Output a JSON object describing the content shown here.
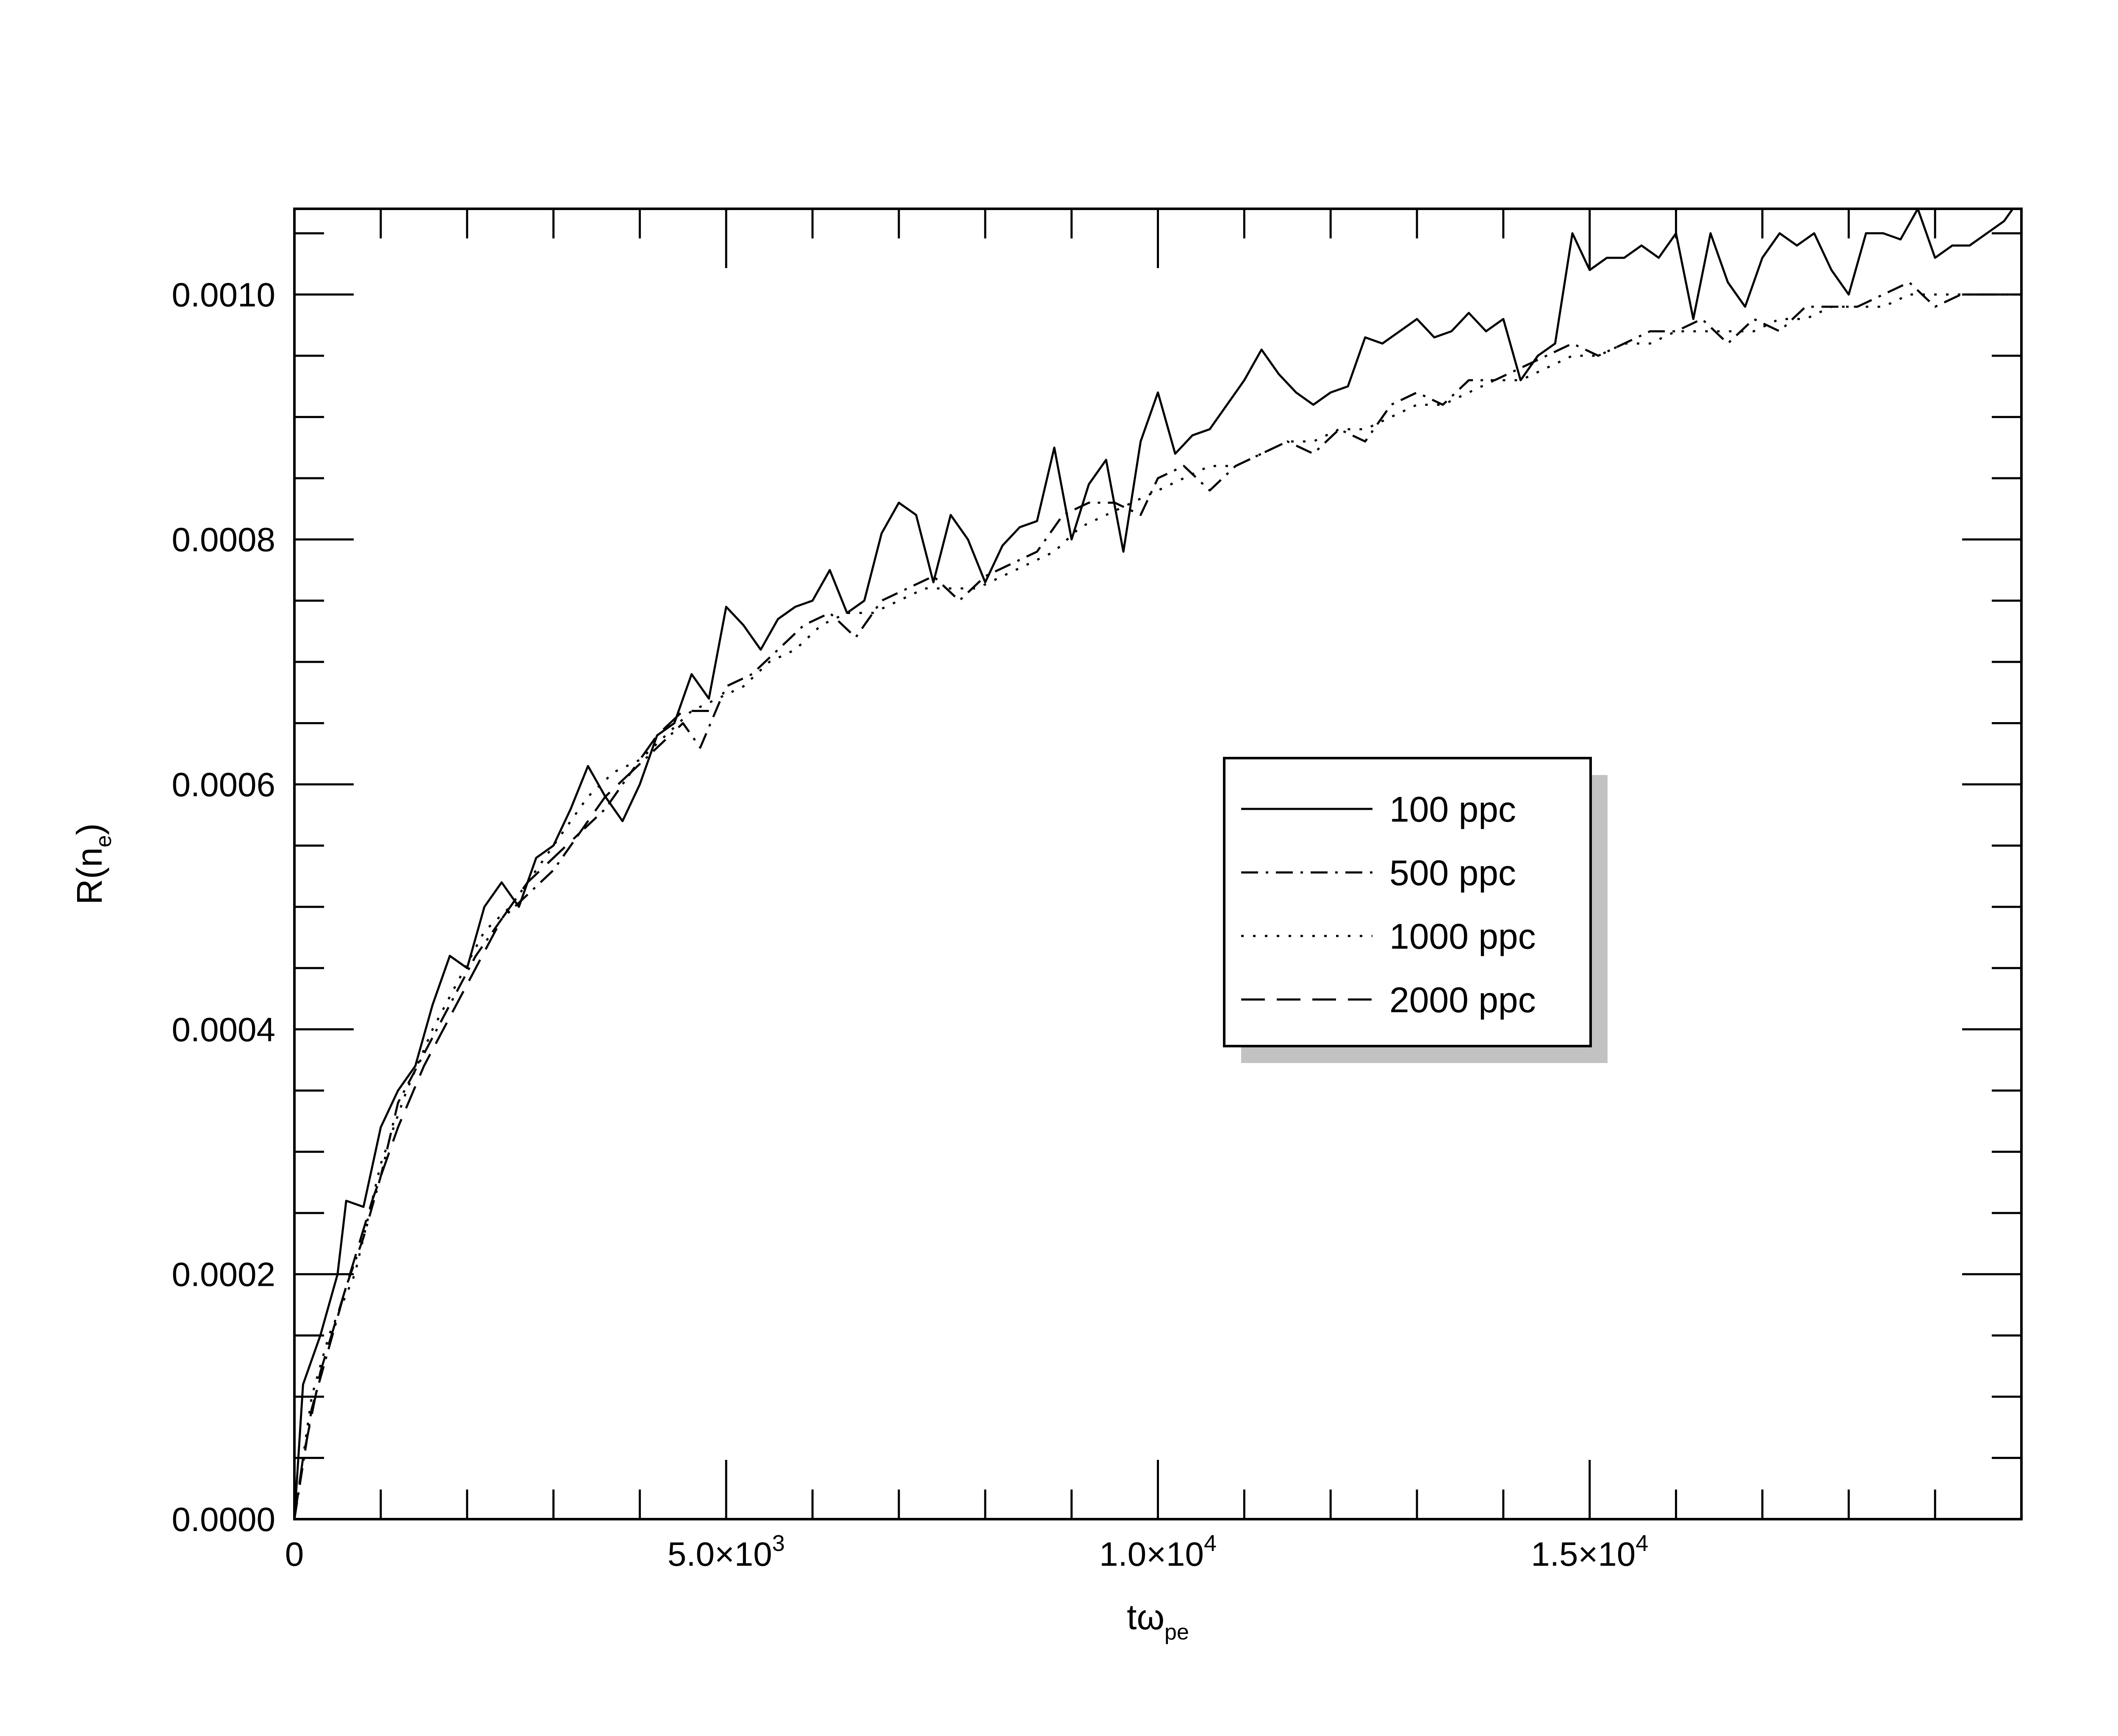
{
  "chart_data": {
    "type": "line",
    "title": "",
    "xlabel": {
      "main": "tω",
      "sub": "pe"
    },
    "ylabel": {
      "main": "R(n",
      "sub": "e",
      "close": ")"
    },
    "xlim": [
      0,
      20000
    ],
    "ylim": [
      0,
      0.00107
    ],
    "y_ticks": [
      {
        "value": 0,
        "label": "0.0000"
      },
      {
        "value": 0.0002,
        "label": "0.0002"
      },
      {
        "value": 0.0004,
        "label": "0.0004"
      },
      {
        "value": 0.0006,
        "label": "0.0006"
      },
      {
        "value": 0.0008,
        "label": "0.0008"
      },
      {
        "value": 0.001,
        "label": "0.0010"
      }
    ],
    "x_ticks": [
      {
        "value": 0,
        "label": "0"
      },
      {
        "value": 5000,
        "label": "5.0×10",
        "exp": "3"
      },
      {
        "value": 10000,
        "label": "1.0×10",
        "exp": "4"
      },
      {
        "value": 15000,
        "label": "1.5×10",
        "exp": "4"
      }
    ],
    "x_minor_step": 1000,
    "y_minor_step": 5e-05,
    "grid": false,
    "legend_position": "center-right",
    "series": [
      {
        "name": "100 ppc",
        "dash": "solid",
        "points": [
          [
            0,
            0
          ],
          [
            100,
            0.00011
          ],
          [
            300,
            0.00015
          ],
          [
            500,
            0.0002
          ],
          [
            600,
            0.00026
          ],
          [
            800,
            0.000255
          ],
          [
            1000,
            0.00032
          ],
          [
            1200,
            0.00035
          ],
          [
            1400,
            0.00037
          ],
          [
            1600,
            0.00042
          ],
          [
            1800,
            0.00046
          ],
          [
            2000,
            0.00045
          ],
          [
            2200,
            0.0005
          ],
          [
            2400,
            0.00052
          ],
          [
            2600,
            0.0005
          ],
          [
            2800,
            0.00054
          ],
          [
            3000,
            0.00055
          ],
          [
            3200,
            0.00058
          ],
          [
            3400,
            0.000615
          ],
          [
            3600,
            0.00059
          ],
          [
            3800,
            0.00057
          ],
          [
            4000,
            0.0006
          ],
          [
            4200,
            0.00064
          ],
          [
            4400,
            0.00065
          ],
          [
            4600,
            0.00069
          ],
          [
            4800,
            0.00067
          ],
          [
            5000,
            0.000745
          ],
          [
            5200,
            0.00073
          ],
          [
            5400,
            0.00071
          ],
          [
            5600,
            0.000735
          ],
          [
            5800,
            0.000745
          ],
          [
            6000,
            0.00075
          ],
          [
            6200,
            0.000775
          ],
          [
            6400,
            0.00074
          ],
          [
            6600,
            0.00075
          ],
          [
            6800,
            0.000805
          ],
          [
            7000,
            0.00083
          ],
          [
            7200,
            0.00082
          ],
          [
            7400,
            0.000765
          ],
          [
            7600,
            0.00082
          ],
          [
            7800,
            0.0008
          ],
          [
            8000,
            0.000765
          ],
          [
            8200,
            0.000795
          ],
          [
            8400,
            0.00081
          ],
          [
            8600,
            0.000815
          ],
          [
            8800,
            0.000875
          ],
          [
            9000,
            0.0008
          ],
          [
            9200,
            0.000845
          ],
          [
            9400,
            0.000865
          ],
          [
            9600,
            0.00079
          ],
          [
            9800,
            0.00088
          ],
          [
            10000,
            0.00092
          ],
          [
            10200,
            0.00087
          ],
          [
            10400,
            0.000885
          ],
          [
            10600,
            0.00089
          ],
          [
            10800,
            0.00091
          ],
          [
            11000,
            0.00093
          ],
          [
            11200,
            0.000955
          ],
          [
            11400,
            0.000935
          ],
          [
            11600,
            0.00092
          ],
          [
            11800,
            0.00091
          ],
          [
            12000,
            0.00092
          ],
          [
            12200,
            0.000925
          ],
          [
            12400,
            0.000965
          ],
          [
            12600,
            0.00096
          ],
          [
            12800,
            0.00097
          ],
          [
            13000,
            0.00098
          ],
          [
            13200,
            0.000965
          ],
          [
            13400,
            0.00097
          ],
          [
            13600,
            0.000985
          ],
          [
            13800,
            0.00097
          ],
          [
            14000,
            0.00098
          ],
          [
            14200,
            0.00093
          ],
          [
            14400,
            0.00095
          ],
          [
            14600,
            0.00096
          ],
          [
            14800,
            0.00105
          ],
          [
            15000,
            0.00102
          ],
          [
            15200,
            0.00103
          ],
          [
            15400,
            0.00103
          ],
          [
            15600,
            0.00104
          ],
          [
            15800,
            0.00103
          ],
          [
            16000,
            0.00105
          ],
          [
            16200,
            0.00098
          ],
          [
            16400,
            0.00105
          ],
          [
            16600,
            0.00101
          ],
          [
            16800,
            0.00099
          ],
          [
            17000,
            0.00103
          ],
          [
            17200,
            0.00105
          ],
          [
            17400,
            0.00104
          ],
          [
            17600,
            0.00105
          ],
          [
            17800,
            0.00102
          ],
          [
            18000,
            0.001
          ],
          [
            18200,
            0.00105
          ],
          [
            18400,
            0.00105
          ],
          [
            18600,
            0.001045
          ],
          [
            18800,
            0.00107
          ],
          [
            19000,
            0.00103
          ],
          [
            19200,
            0.00104
          ],
          [
            19400,
            0.00104
          ],
          [
            19600,
            0.00105
          ],
          [
            19800,
            0.00106
          ],
          [
            20000,
            0.00108
          ]
        ]
      },
      {
        "name": "500 ppc",
        "dash": "dashdot",
        "points": [
          [
            0,
            0
          ],
          [
            200,
            9e-05
          ],
          [
            400,
            0.00014
          ],
          [
            600,
            0.00019
          ],
          [
            800,
            0.00023
          ],
          [
            1000,
            0.00028
          ],
          [
            1200,
            0.00034
          ],
          [
            1500,
            0.00038
          ],
          [
            1800,
            0.00042
          ],
          [
            2100,
            0.00046
          ],
          [
            2400,
            0.00049
          ],
          [
            2700,
            0.00051
          ],
          [
            3000,
            0.00053
          ],
          [
            3300,
            0.00056
          ],
          [
            3600,
            0.00058
          ],
          [
            3900,
            0.00061
          ],
          [
            4200,
            0.00063
          ],
          [
            4500,
            0.00065
          ],
          [
            4700,
            0.00063
          ],
          [
            5000,
            0.00068
          ],
          [
            5300,
            0.00069
          ],
          [
            5600,
            0.00071
          ],
          [
            5900,
            0.00073
          ],
          [
            6200,
            0.00074
          ],
          [
            6500,
            0.00072
          ],
          [
            6800,
            0.00075
          ],
          [
            7100,
            0.00076
          ],
          [
            7400,
            0.00077
          ],
          [
            7700,
            0.00075
          ],
          [
            8000,
            0.00077
          ],
          [
            8300,
            0.00078
          ],
          [
            8600,
            0.00079
          ],
          [
            8900,
            0.00082
          ],
          [
            9200,
            0.00083
          ],
          [
            9500,
            0.00083
          ],
          [
            9800,
            0.00082
          ],
          [
            10000,
            0.00085
          ],
          [
            10300,
            0.00086
          ],
          [
            10600,
            0.00084
          ],
          [
            10900,
            0.00086
          ],
          [
            11200,
            0.00087
          ],
          [
            11500,
            0.00088
          ],
          [
            11800,
            0.00087
          ],
          [
            12100,
            0.00089
          ],
          [
            12400,
            0.00088
          ],
          [
            12700,
            0.00091
          ],
          [
            13000,
            0.00092
          ],
          [
            13300,
            0.00091
          ],
          [
            13600,
            0.00093
          ],
          [
            13900,
            0.00093
          ],
          [
            14200,
            0.00094
          ],
          [
            14500,
            0.00095
          ],
          [
            14800,
            0.00096
          ],
          [
            15100,
            0.00095
          ],
          [
            15400,
            0.00096
          ],
          [
            15700,
            0.00097
          ],
          [
            16000,
            0.00097
          ],
          [
            16300,
            0.00098
          ],
          [
            16600,
            0.00096
          ],
          [
            16900,
            0.00098
          ],
          [
            17200,
            0.00097
          ],
          [
            17500,
            0.00099
          ],
          [
            17800,
            0.00099
          ],
          [
            18100,
            0.00099
          ],
          [
            18400,
            0.001
          ],
          [
            18700,
            0.00101
          ],
          [
            19000,
            0.00099
          ],
          [
            19300,
            0.001
          ],
          [
            19600,
            0.001
          ],
          [
            20000,
            0.001
          ]
        ]
      },
      {
        "name": "1000 ppc",
        "dash": "dotted",
        "points": [
          [
            0,
            0
          ],
          [
            200,
            0.0001
          ],
          [
            400,
            0.00015
          ],
          [
            700,
            0.0002
          ],
          [
            1000,
            0.00029
          ],
          [
            1300,
            0.00035
          ],
          [
            1600,
            0.0004
          ],
          [
            1900,
            0.00044
          ],
          [
            2200,
            0.00048
          ],
          [
            2500,
            0.0005
          ],
          [
            2800,
            0.00053
          ],
          [
            3100,
            0.00056
          ],
          [
            3400,
            0.00059
          ],
          [
            3700,
            0.00061
          ],
          [
            4000,
            0.00062
          ],
          [
            4300,
            0.00064
          ],
          [
            4600,
            0.00066
          ],
          [
            4900,
            0.00067
          ],
          [
            5200,
            0.00068
          ],
          [
            5500,
            0.0007
          ],
          [
            5800,
            0.00071
          ],
          [
            6100,
            0.00073
          ],
          [
            6400,
            0.00074
          ],
          [
            6700,
            0.00074
          ],
          [
            7000,
            0.00075
          ],
          [
            7300,
            0.00076
          ],
          [
            7600,
            0.00076
          ],
          [
            7900,
            0.00076
          ],
          [
            8200,
            0.00077
          ],
          [
            8500,
            0.00078
          ],
          [
            8800,
            0.00079
          ],
          [
            9100,
            0.00081
          ],
          [
            9400,
            0.00082
          ],
          [
            9700,
            0.00083
          ],
          [
            10000,
            0.00084
          ],
          [
            10300,
            0.00085
          ],
          [
            10600,
            0.00086
          ],
          [
            10900,
            0.00086
          ],
          [
            11200,
            0.00087
          ],
          [
            11500,
            0.00088
          ],
          [
            11800,
            0.00088
          ],
          [
            12100,
            0.00089
          ],
          [
            12400,
            0.00089
          ],
          [
            12700,
            0.0009
          ],
          [
            13000,
            0.00091
          ],
          [
            13300,
            0.00091
          ],
          [
            13600,
            0.00092
          ],
          [
            13900,
            0.00093
          ],
          [
            14200,
            0.00093
          ],
          [
            14500,
            0.00094
          ],
          [
            14800,
            0.00095
          ],
          [
            15100,
            0.00095
          ],
          [
            15400,
            0.00096
          ],
          [
            15700,
            0.00096
          ],
          [
            16000,
            0.00097
          ],
          [
            16300,
            0.00097
          ],
          [
            16600,
            0.00097
          ],
          [
            16900,
            0.00097
          ],
          [
            17200,
            0.00098
          ],
          [
            17500,
            0.00098
          ],
          [
            17800,
            0.00099
          ],
          [
            18100,
            0.00099
          ],
          [
            18400,
            0.00099
          ],
          [
            18700,
            0.001
          ],
          [
            19000,
            0.001
          ],
          [
            19300,
            0.001
          ],
          [
            19600,
            0.001
          ],
          [
            20000,
            0.001
          ]
        ]
      },
      {
        "name": "2000 ppc",
        "dash": "dashed",
        "points": [
          [
            0,
            0
          ],
          [
            100,
            5e-05
          ],
          [
            300,
            0.00012
          ],
          [
            600,
            0.00019
          ],
          [
            900,
            0.00026
          ],
          [
            1200,
            0.00032
          ],
          [
            1500,
            0.00037
          ],
          [
            1800,
            0.00041
          ],
          [
            2100,
            0.00045
          ],
          [
            2400,
            0.00049
          ],
          [
            2700,
            0.00052
          ],
          [
            3000,
            0.00054
          ],
          [
            3300,
            0.00056
          ],
          [
            3600,
            0.00059
          ],
          [
            3900,
            0.00061
          ],
          [
            4200,
            0.00064
          ],
          [
            4500,
            0.00066
          ],
          [
            4800,
            0.00066
          ]
        ]
      }
    ],
    "legend": {
      "entries": [
        {
          "label": "100 ppc",
          "dash": "solid"
        },
        {
          "label": "500 ppc",
          "dash": "dashdot"
        },
        {
          "label": "1000 ppc",
          "dash": "dotted"
        },
        {
          "label": "2000 ppc",
          "dash": "dashed"
        }
      ]
    }
  }
}
